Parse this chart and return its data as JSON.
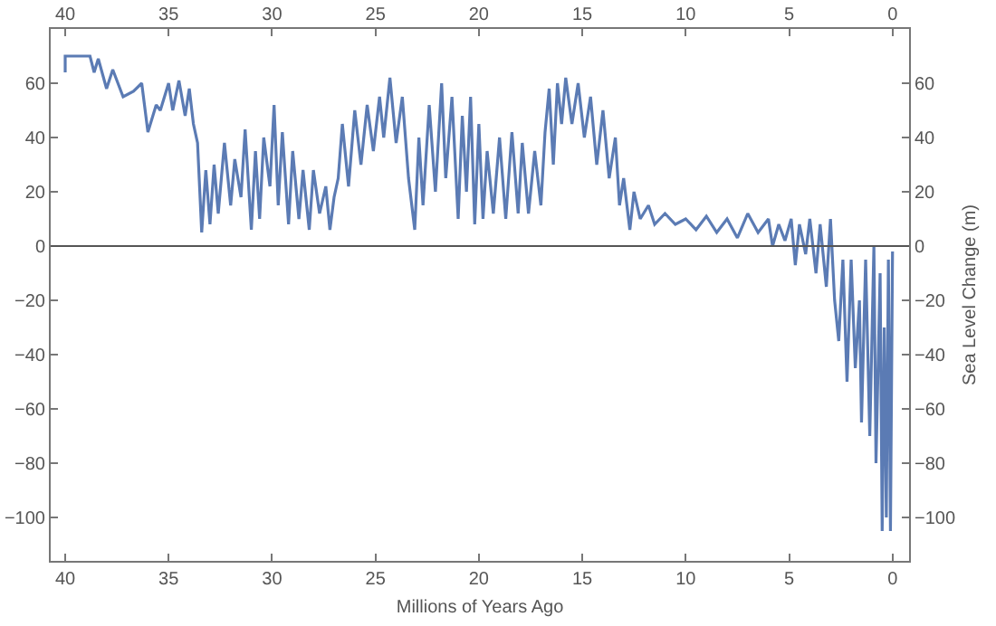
{
  "chart_data": {
    "type": "line",
    "xlabel": "Millions of Years Ago",
    "y2label": "Sea Level Change (m)",
    "xlim": [
      40.7,
      -0.8
    ],
    "xticks": [
      40,
      35,
      30,
      25,
      20,
      15,
      10,
      5,
      0
    ],
    "x2lim": [
      40.7,
      -0.8
    ],
    "x2ticks": [
      40,
      35,
      30,
      25,
      20,
      15,
      10,
      5,
      0
    ],
    "ylim": [
      -116,
      80
    ],
    "yticks": [
      -100,
      -80,
      -60,
      -40,
      -20,
      0,
      20,
      40,
      60
    ],
    "y2lim": [
      -116,
      80
    ],
    "y2ticks": [
      -100,
      -80,
      -60,
      -40,
      -20,
      0,
      20,
      40,
      60
    ],
    "ref_lines": [
      {
        "axis": "y",
        "value": 0,
        "color": "#555555"
      }
    ],
    "marker": "none",
    "line_style": "solid",
    "series": [
      {
        "color": "#5b7bb4",
        "x": [
          40,
          40,
          38.8,
          38.6,
          38.4,
          38,
          37.7,
          37.2,
          36.7,
          36.3,
          36,
          35.6,
          35.4,
          35,
          34.8,
          34.5,
          34.2,
          34,
          33.8,
          33.6,
          33.4,
          33.2,
          33,
          32.8,
          32.6,
          32.3,
          32,
          31.8,
          31.5,
          31.3,
          31,
          30.8,
          30.6,
          30.4,
          30.1,
          29.9,
          29.7,
          29.5,
          29.2,
          29,
          28.7,
          28.5,
          28.2,
          28,
          27.7,
          27.4,
          27.2,
          27,
          26.8,
          26.6,
          26.3,
          26,
          25.7,
          25.4,
          25.1,
          24.8,
          24.6,
          24.3,
          24,
          23.7,
          23.4,
          23.1,
          22.9,
          22.7,
          22.4,
          22.1,
          21.8,
          21.6,
          21.3,
          21,
          20.8,
          20.6,
          20.4,
          20.2,
          20,
          19.8,
          19.6,
          19.3,
          19,
          18.7,
          18.4,
          18.1,
          17.9,
          17.6,
          17.3,
          17,
          16.8,
          16.6,
          16.4,
          16.2,
          16,
          15.8,
          15.5,
          15.2,
          14.9,
          14.6,
          14.3,
          14,
          13.7,
          13.4,
          13.2,
          13,
          12.7,
          12.5,
          12.2,
          11.8,
          11.5,
          11,
          10.5,
          10,
          9.5,
          9,
          8.5,
          8,
          7.5,
          7,
          6.5,
          6,
          5.8,
          5.5,
          5.2,
          4.9,
          4.7,
          4.5,
          4.2,
          4,
          3.7,
          3.5,
          3.2,
          3,
          2.8,
          2.6,
          2.4,
          2.2,
          2,
          1.8,
          1.6,
          1.5,
          1.3,
          1.1,
          0.9,
          0.8,
          0.6,
          0.5,
          0.4,
          0.3,
          0.2,
          0.1,
          0
        ],
        "values": [
          64,
          70,
          70,
          64,
          69,
          58,
          65,
          55,
          57,
          60,
          42,
          52,
          50,
          60,
          50,
          61,
          48,
          58,
          45,
          38,
          5,
          28,
          8,
          30,
          12,
          38,
          15,
          32,
          18,
          43,
          6,
          35,
          10,
          40,
          22,
          52,
          15,
          42,
          8,
          35,
          10,
          28,
          6,
          28,
          12,
          22,
          6,
          18,
          25,
          45,
          22,
          50,
          30,
          52,
          35,
          55,
          40,
          62,
          38,
          55,
          25,
          6,
          40,
          15,
          52,
          20,
          60,
          25,
          55,
          10,
          48,
          20,
          55,
          8,
          45,
          10,
          35,
          12,
          40,
          10,
          42,
          12,
          38,
          12,
          35,
          15,
          42,
          58,
          30,
          60,
          45,
          62,
          45,
          60,
          40,
          55,
          30,
          50,
          25,
          40,
          15,
          25,
          6,
          20,
          10,
          15,
          8,
          12,
          8,
          10,
          6,
          11,
          5,
          10,
          3,
          12,
          5,
          10,
          0,
          8,
          2,
          10,
          -7,
          8,
          -3,
          10,
          -10,
          8,
          -15,
          10,
          -20,
          -35,
          -5,
          -50,
          -5,
          -45,
          -20,
          -65,
          -5,
          -70,
          0,
          -80,
          -10,
          -105,
          -30,
          -100,
          -5,
          -105,
          -2
        ]
      }
    ]
  }
}
